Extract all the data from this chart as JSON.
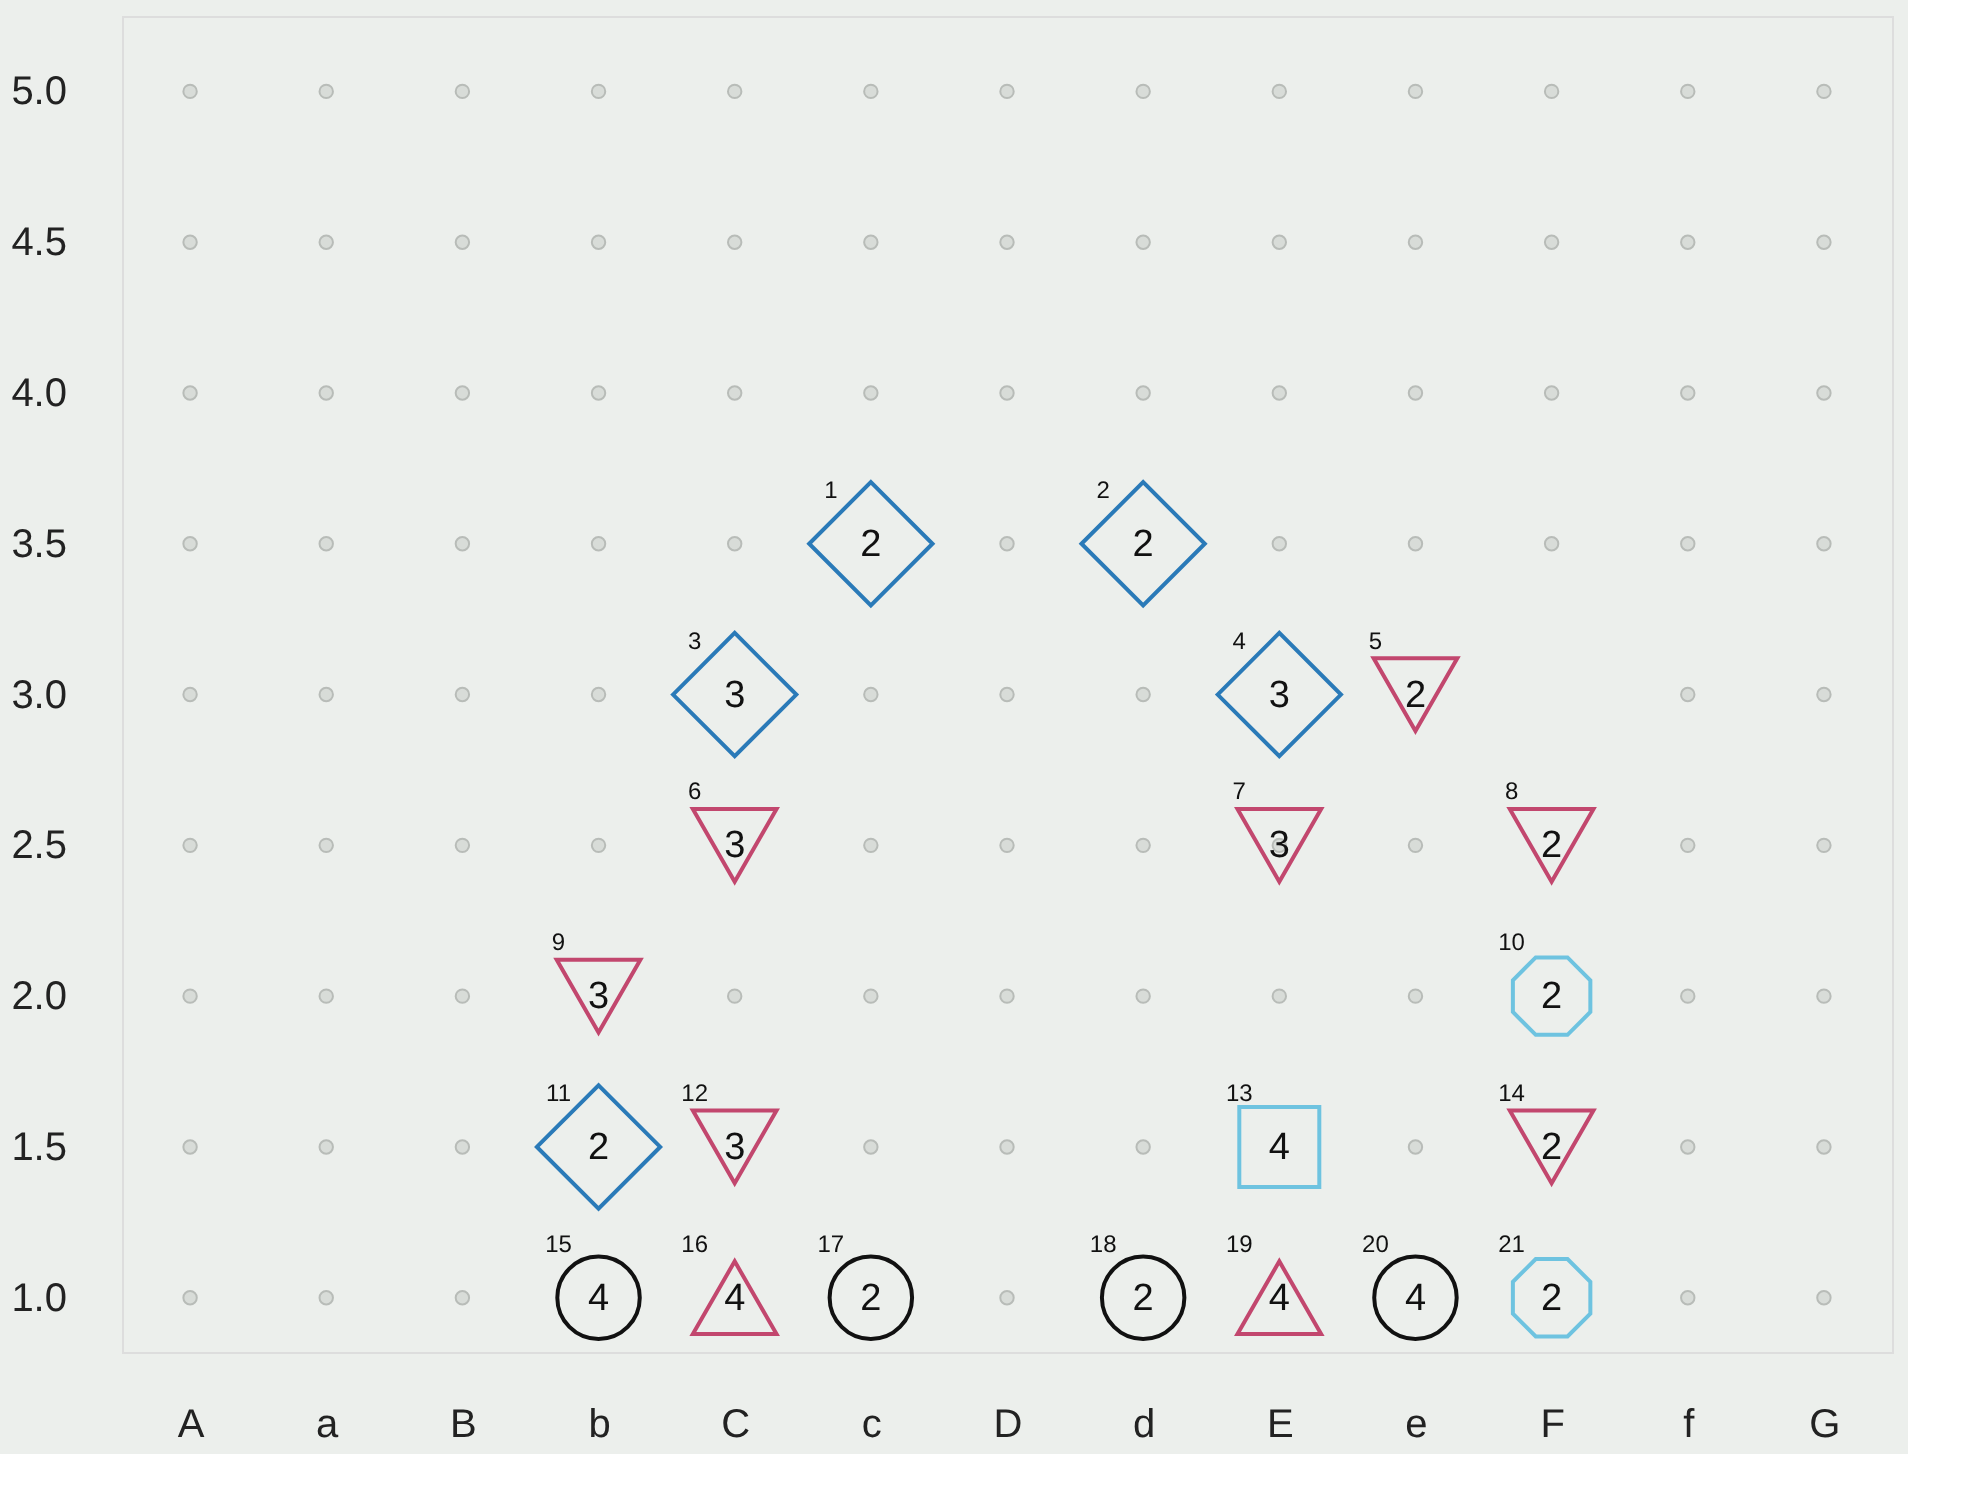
{
  "chart_data": {
    "type": "scatter",
    "categories": [
      "A",
      "a",
      "B",
      "b",
      "C",
      "c",
      "D",
      "d",
      "E",
      "e",
      "F",
      "f",
      "G"
    ],
    "ylim": [
      0.82,
      5.25
    ],
    "yticks": [
      {
        "value": 1,
        "label": "1.0"
      },
      {
        "value": 1.5,
        "label": "1.5"
      },
      {
        "value": 2,
        "label": "2.0"
      },
      {
        "value": 2.5,
        "label": "2.5"
      },
      {
        "value": 3,
        "label": "3.0"
      },
      {
        "value": 3.5,
        "label": "3.5"
      },
      {
        "value": 4,
        "label": "4.0"
      },
      {
        "value": 4.5,
        "label": "4.5"
      },
      {
        "value": 5,
        "label": "5.0"
      }
    ],
    "series": [
      {
        "color": "#b8bcb8",
        "marker": "circle",
        "x": [
          "A",
          "a",
          "B",
          "b",
          "C",
          "c",
          "D",
          "d",
          "E",
          "e",
          "F",
          "f",
          "G",
          "A",
          "a",
          "B",
          "b",
          "C",
          "c",
          "D",
          "d",
          "E",
          "e",
          "F",
          "f",
          "G",
          "A",
          "a",
          "B",
          "b",
          "C",
          "c",
          "D",
          "d",
          "E",
          "e",
          "F",
          "f",
          "G",
          "A",
          "a",
          "B",
          "b",
          "C",
          "D",
          "E",
          "e",
          "F",
          "f",
          "G",
          "A",
          "a",
          "B",
          "b",
          "c",
          "D",
          "d",
          "f",
          "G",
          "A",
          "a",
          "B",
          "b",
          "c",
          "D",
          "d",
          "E",
          "e",
          "f",
          "G",
          "A",
          "a",
          "B",
          "C",
          "c",
          "D",
          "d",
          "E",
          "e",
          "f",
          "G",
          "A",
          "a",
          "B",
          "c",
          "D",
          "d",
          "e",
          "f",
          "G",
          "A",
          "a",
          "B",
          "D",
          "f",
          "G"
        ],
        "values": [
          5,
          5,
          5,
          5,
          5,
          5,
          5,
          5,
          5,
          5,
          5,
          5,
          5,
          4.5,
          4.5,
          4.5,
          4.5,
          4.5,
          4.5,
          4.5,
          4.5,
          4.5,
          4.5,
          4.5,
          4.5,
          4.5,
          4,
          4,
          4,
          4,
          4,
          4,
          4,
          4,
          4,
          4,
          4,
          4,
          4,
          3.5,
          3.5,
          3.5,
          3.5,
          3.5,
          3.5,
          3.5,
          3.5,
          3.5,
          3.5,
          3.5,
          3,
          3,
          3,
          3,
          3,
          3,
          3,
          3,
          3,
          2.5,
          2.5,
          2.5,
          2.5,
          2.5,
          2.5,
          2.5,
          2.5,
          2.5,
          2.5,
          2.5,
          2,
          2,
          2,
          2,
          2,
          2,
          2,
          2,
          2,
          2,
          2,
          1.5,
          1.5,
          1.5,
          1.5,
          1.5,
          1.5,
          1.5,
          1.5,
          1.5,
          1,
          1,
          1,
          1,
          1,
          1
        ]
      },
      {
        "color": "#2a7ab8",
        "marker": "diamond",
        "x": [
          "c",
          "d",
          "C",
          "E",
          "b"
        ],
        "values": [
          3.5,
          3.5,
          3.0,
          3.0,
          1.5
        ]
      },
      {
        "color": "#c2476e",
        "marker": "triangle-down",
        "x": [
          "e",
          "C",
          "E",
          "F",
          "b",
          "C",
          "F"
        ],
        "values": [
          3.0,
          2.5,
          2.5,
          2.5,
          2.0,
          1.5,
          1.5
        ]
      },
      {
        "color": "#6ec3e0",
        "x": [
          "F",
          "F"
        ],
        "values": [
          2.0,
          1.0
        ]
      },
      {
        "color": "#6ec3e0",
        "marker": "square",
        "x": [
          "E"
        ],
        "values": [
          1.5
        ]
      },
      {
        "color": "#111111",
        "marker": "circle",
        "x": [
          "b",
          "c",
          "d",
          "e"
        ],
        "values": [
          1.0,
          1.0,
          1.0,
          1.0
        ]
      },
      {
        "color": "#c2476e",
        "marker": "triangle",
        "x": [
          "C",
          "E"
        ],
        "values": [
          1.0,
          1.0
        ]
      }
    ],
    "annotations": [
      {
        "text": "1",
        "x": "c",
        "y": 3.5
      },
      {
        "text": "2",
        "x": "c",
        "y": 3.5
      },
      {
        "text": "2",
        "x": "d",
        "y": 3.5
      },
      {
        "text": "2",
        "x": "d",
        "y": 3.5
      },
      {
        "text": "3",
        "x": "C",
        "y": 3.0
      },
      {
        "text": "3",
        "x": "C",
        "y": 3.0
      },
      {
        "text": "4",
        "x": "E",
        "y": 3.0
      },
      {
        "text": "3",
        "x": "E",
        "y": 3.0
      },
      {
        "text": "5",
        "x": "e",
        "y": 3.0
      },
      {
        "text": "2",
        "x": "e",
        "y": 3.0
      },
      {
        "text": "6",
        "x": "C",
        "y": 2.5
      },
      {
        "text": "3",
        "x": "C",
        "y": 2.5
      },
      {
        "text": "7",
        "x": "E",
        "y": 2.5
      },
      {
        "text": "3",
        "x": "E",
        "y": 2.5
      },
      {
        "text": "8",
        "x": "F",
        "y": 2.5
      },
      {
        "text": "2",
        "x": "F",
        "y": 2.5
      },
      {
        "text": "9",
        "x": "b",
        "y": 2.0
      },
      {
        "text": "3",
        "x": "b",
        "y": 2.0
      },
      {
        "text": "10",
        "x": "F",
        "y": 2.0
      },
      {
        "text": "2",
        "x": "F",
        "y": 2.0
      },
      {
        "text": "11",
        "x": "b",
        "y": 1.5
      },
      {
        "text": "2",
        "x": "b",
        "y": 1.5
      },
      {
        "text": "12",
        "x": "C",
        "y": 1.5
      },
      {
        "text": "3",
        "x": "C",
        "y": 1.5
      },
      {
        "text": "13",
        "x": "E",
        "y": 1.5
      },
      {
        "text": "4",
        "x": "E",
        "y": 1.5
      },
      {
        "text": "14",
        "x": "F",
        "y": 1.5
      },
      {
        "text": "2",
        "x": "F",
        "y": 1.5
      },
      {
        "text": "15",
        "x": "b",
        "y": 1.0
      },
      {
        "text": "4",
        "x": "b",
        "y": 1.0
      },
      {
        "text": "16",
        "x": "C",
        "y": 1.0
      },
      {
        "text": "4",
        "x": "C",
        "y": 1.0
      },
      {
        "text": "17",
        "x": "c",
        "y": 1.0
      },
      {
        "text": "2",
        "x": "c",
        "y": 1.0
      },
      {
        "text": "18",
        "x": "d",
        "y": 1.0
      },
      {
        "text": "2",
        "x": "d",
        "y": 1.0
      },
      {
        "text": "19",
        "x": "E",
        "y": 1.0
      },
      {
        "text": "4",
        "x": "E",
        "y": 1.0
      },
      {
        "text": "20",
        "x": "e",
        "y": 1.0
      },
      {
        "text": "4",
        "x": "e",
        "y": 1.0
      },
      {
        "text": "21",
        "x": "F",
        "y": 1.0
      },
      {
        "text": "2",
        "x": "F",
        "y": 1.0
      }
    ]
  }
}
